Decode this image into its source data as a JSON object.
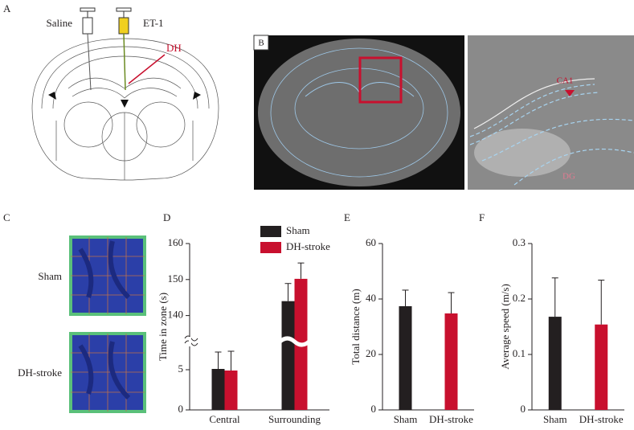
{
  "panels": {
    "A": {
      "label": "A",
      "saline": "Saline",
      "et1": "ET-1",
      "dh": "DH"
    },
    "B": {
      "label": "B",
      "ca1": "CA1",
      "dg": "DG"
    },
    "C": {
      "label": "C",
      "rows": [
        "Sham",
        "DH-stroke"
      ]
    }
  },
  "chart_data": [
    {
      "type": "bar",
      "panel": "D",
      "y_label": "Time in zone (s)",
      "categories": [
        "Central",
        "Surrounding"
      ],
      "series": [
        {
          "name": "Sham",
          "color": "#231f20",
          "values": [
            5.1,
            144.0
          ],
          "errors": [
            2.1,
            4.9
          ]
        },
        {
          "name": "DH-stroke",
          "color": "#c8102e",
          "values": [
            4.9,
            150.2
          ],
          "errors": [
            2.4,
            4.4
          ]
        }
      ],
      "ylim": [
        0,
        160
      ],
      "ybreak": [
        7.5,
        135
      ],
      "yticks": [
        0,
        5,
        140,
        150,
        160
      ],
      "legend": "top"
    },
    {
      "type": "bar",
      "panel": "E",
      "y_label": "Total distance (m)",
      "categories": [
        "Sham",
        "DH-stroke"
      ],
      "values": [
        37.4,
        34.8
      ],
      "errors": [
        5.8,
        7.5
      ],
      "colors": [
        "#231f20",
        "#c8102e"
      ],
      "ylim": [
        0,
        60
      ],
      "yticks": [
        0,
        20,
        40,
        60
      ]
    },
    {
      "type": "bar",
      "panel": "F",
      "y_label": "Average speed (m/s)",
      "categories": [
        "Sham",
        "DH-stroke"
      ],
      "values": [
        0.168,
        0.154
      ],
      "errors": [
        0.07,
        0.08
      ],
      "colors": [
        "#231f20",
        "#c8102e"
      ],
      "ylim": [
        0,
        0.3
      ],
      "yticks": [
        0,
        0.1,
        0.2,
        0.3
      ]
    }
  ]
}
